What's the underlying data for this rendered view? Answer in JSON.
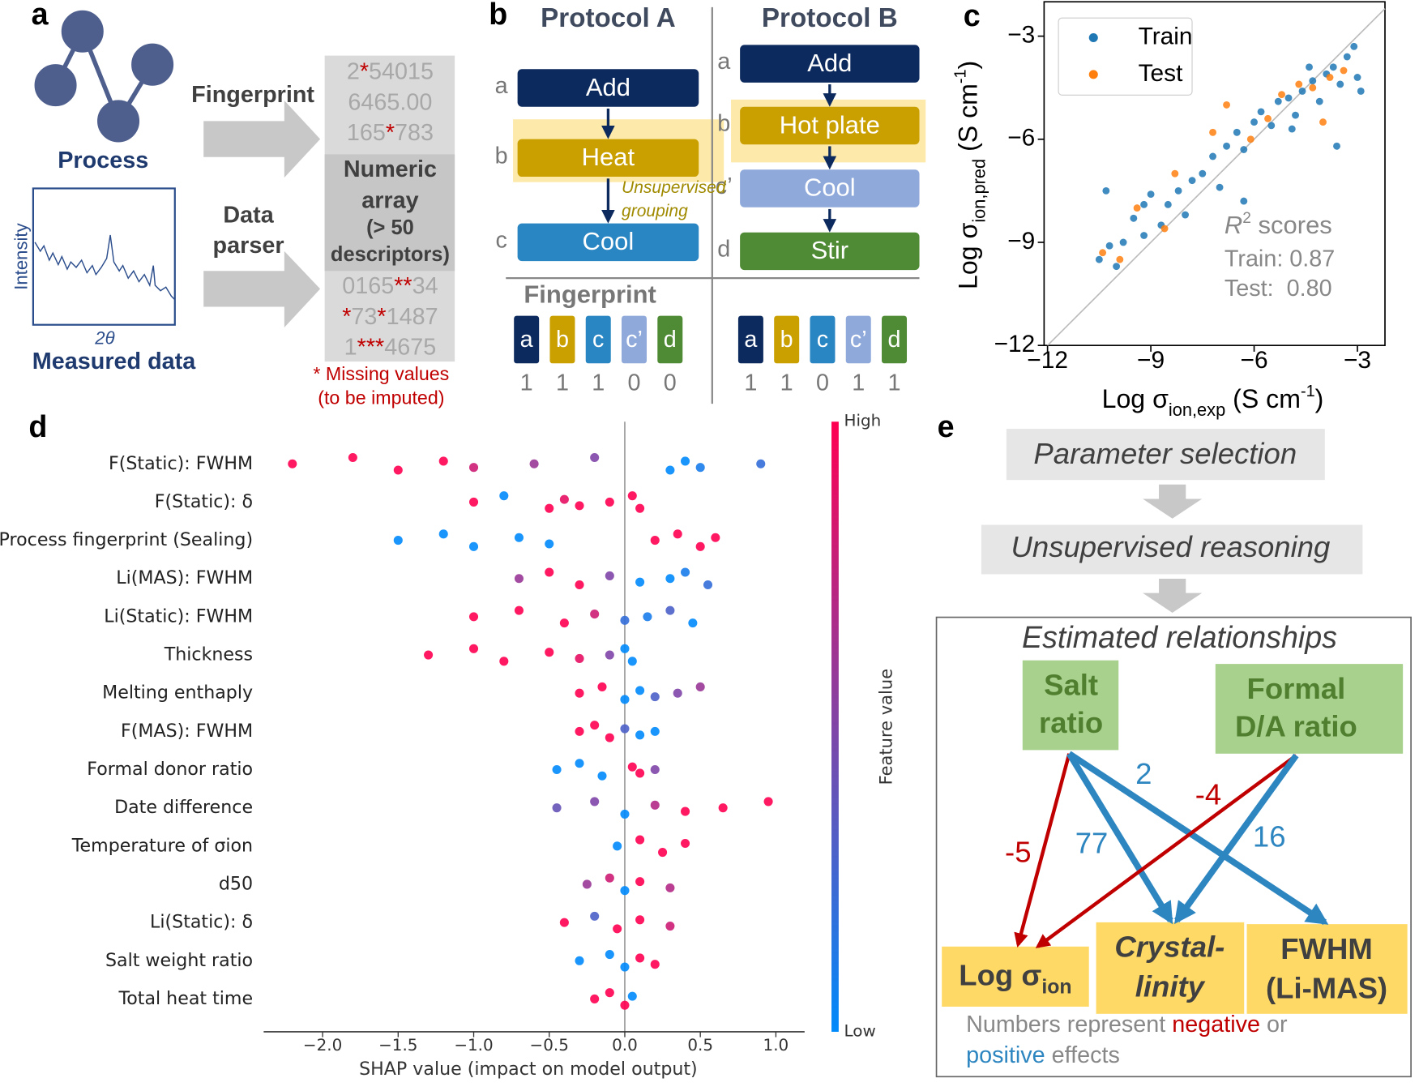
{
  "panel_a": {
    "letter": "a",
    "process": "Process",
    "fingerprint": "Fingerprint",
    "data_parser": [
      "Data",
      "parser"
    ],
    "intensity": "Intensity",
    "two_theta": "2θ",
    "measured_data": "Measured data",
    "array_lines": [
      "2*54015",
      "6465.00",
      "165*783",
      "0165**34",
      "*73*1487",
      "1***4675"
    ],
    "overlay": [
      "Numeric",
      "array",
      "(> 50",
      "descriptors)"
    ],
    "missing_note": [
      "* Missing values",
      "(to be imputed)"
    ]
  },
  "panel_b": {
    "letter": "b",
    "protocols": [
      {
        "title": "Protocol A",
        "steps": [
          {
            "tag": "a",
            "label": "Add"
          },
          {
            "tag": "b",
            "label": "Heat"
          },
          {
            "tag": "c",
            "label": "Cool"
          }
        ],
        "fingerprint": [
          1,
          1,
          1,
          0,
          0
        ]
      },
      {
        "title": "Protocol B",
        "steps": [
          {
            "tag": "a",
            "label": "Add"
          },
          {
            "tag": "b",
            "label": "Hot plate"
          },
          {
            "tag": "c’",
            "label": "Cool"
          },
          {
            "tag": "d",
            "label": "Stir"
          }
        ],
        "fingerprint": [
          1,
          1,
          0,
          1,
          1
        ]
      }
    ],
    "grouping": [
      "Unsupervised",
      "grouping"
    ],
    "fingerprint_title": "Fingerprint",
    "fingerprint_keys": [
      "a",
      "b",
      "c",
      "c’",
      "d"
    ],
    "key_colors": [
      "#0d2a5e",
      "#c9a000",
      "#2a86c2",
      "#8fa9db",
      "#4f8a34"
    ]
  },
  "chart_data": [
    {
      "panel_label": "c",
      "type": "scatter",
      "x_label": {
        "main": "Log σ",
        "sub": "ion,exp",
        "unit": " (S cm",
        "sup": "-1",
        "close": ")"
      },
      "y_label": {
        "main": "Log σ",
        "sub": "ion,pred",
        "unit": " (S cm",
        "sup": "-1",
        "close": ")"
      },
      "xlim": [
        -12.1,
        -2.2
      ],
      "ylim": [
        -12,
        -2
      ],
      "xticks": [
        {
          "value": -12,
          "label": "−12"
        },
        {
          "value": -9,
          "label": "−9"
        },
        {
          "value": -6,
          "label": "−6"
        },
        {
          "value": -3,
          "label": "−3"
        }
      ],
      "yticks": [
        {
          "value": -12,
          "label": "−12"
        },
        {
          "value": -9,
          "label": "−9"
        },
        {
          "value": -6,
          "label": "−6"
        },
        {
          "value": -3,
          "label": "−3"
        }
      ],
      "legend": "upper left",
      "identity_line": true,
      "series": [
        {
          "name": "Train",
          "color": "#1f77b4",
          "x": [
            -10.5,
            -10.2,
            -10,
            -9.8,
            -9.5,
            -9.2,
            -9,
            -8.7,
            -8.5,
            -8.2,
            -8,
            -7.8,
            -7.5,
            -7.2,
            -7,
            -6.8,
            -6.5,
            -6.3,
            -6,
            -5.8,
            -5.5,
            -5.3,
            -5,
            -4.8,
            -4.6,
            -4.3,
            -4.1,
            -3.9,
            -3.7,
            -3.5,
            -3.3,
            -3.1,
            -3,
            -3.6,
            -4.9,
            -10.3,
            -9.2,
            -6.3,
            -2.9,
            -4.4
          ],
          "values": [
            -9.5,
            -9.1,
            -9.7,
            -9,
            -8.3,
            -8.8,
            -7.6,
            -8.5,
            -7.9,
            -7.5,
            -8.2,
            -7.2,
            -7,
            -6.5,
            -7.4,
            -6.2,
            -5.8,
            -6.3,
            -5.5,
            -5.2,
            -5.6,
            -4.9,
            -4.8,
            -5.3,
            -4.6,
            -4.3,
            -4.9,
            -4.1,
            -3.9,
            -4.4,
            -3.6,
            -3.3,
            -4.2,
            -6.2,
            -5.7,
            -7.5,
            -7.9,
            -7.8,
            -4.6,
            -3.9
          ]
        },
        {
          "name": "Test",
          "color": "#ff7f0e",
          "x": [
            -10.4,
            -9.9,
            -9.4,
            -8.6,
            -8.3,
            -7.2,
            -6.8,
            -6.1,
            -5.6,
            -5.2,
            -4.7,
            -4.3,
            -4,
            -3.8,
            -3.4
          ],
          "values": [
            -9.3,
            -9.5,
            -8,
            -8.6,
            -7,
            -5.8,
            -5,
            -6,
            -5.4,
            -4.7,
            -4.4,
            -4.5,
            -5.5,
            -4.2,
            -4
          ]
        }
      ],
      "annotation": {
        "r": "R",
        "sup": "2",
        "rest": " scores",
        "lines": [
          "Train: 0.87",
          "Test:  0.80"
        ]
      }
    },
    {
      "panel_label": "d",
      "type": "beeswarm",
      "categories": [
        "F(Static): FWHM",
        "F(Static): δ",
        "Process fingerprint (Sealing)",
        "Li(MAS): FWHM",
        "Li(Static): FWHM",
        "Thickness",
        "Melting enthaply",
        "F(MAS): FWHM",
        "Formal donor ratio",
        "Date difference",
        "Temperature of σion",
        "d50",
        "Li(Static): δ",
        "Salt weight ratio",
        "Total heat time"
      ],
      "shap_values": [
        [
          -2.2,
          -1.8,
          -1.5,
          -1.2,
          -1,
          -0.6,
          -0.2,
          0.3,
          0.4,
          0.5,
          0.9
        ],
        [
          -1,
          -0.8,
          -0.5,
          -0.4,
          -0.3,
          -0.1,
          0.05,
          0.1
        ],
        [
          -1.5,
          -1.2,
          -1,
          -0.7,
          -0.5,
          0.2,
          0.35,
          0.5,
          0.6
        ],
        [
          -0.7,
          -0.5,
          -0.3,
          -0.1,
          0.1,
          0.3,
          0.4,
          0.55
        ],
        [
          -1,
          -0.7,
          -0.4,
          -0.2,
          0,
          0.15,
          0.3,
          0.45
        ],
        [
          -1.3,
          -1,
          -0.8,
          -0.5,
          -0.3,
          -0.1,
          0,
          0.05
        ],
        [
          -0.3,
          -0.15,
          0,
          0.1,
          0.2,
          0.35,
          0.5
        ],
        [
          -0.3,
          -0.2,
          -0.1,
          0,
          0.1,
          0.2
        ],
        [
          -0.45,
          -0.3,
          -0.15,
          0.05,
          0.1,
          0.2
        ],
        [
          -0.45,
          -0.2,
          0,
          0.2,
          0.4,
          0.65,
          0.95
        ],
        [
          -0.05,
          0.1,
          0.25,
          0.4
        ],
        [
          -0.25,
          -0.1,
          0,
          0.1,
          0.3
        ],
        [
          -0.4,
          -0.2,
          -0.05,
          0.1,
          0.3
        ],
        [
          -0.3,
          -0.1,
          0,
          0.1,
          0.2
        ],
        [
          -0.2,
          -0.1,
          0,
          0.05
        ]
      ],
      "feature_values": [
        [
          1,
          1,
          1,
          1,
          0.8,
          0.6,
          0.5,
          0,
          0,
          0.1,
          0.2
        ],
        [
          1,
          0,
          1,
          0.9,
          1,
          1,
          1,
          1
        ],
        [
          0,
          0,
          0,
          0,
          0,
          1,
          1,
          1,
          1
        ],
        [
          0.6,
          1,
          1,
          0.5,
          0,
          0,
          0.1,
          0.2
        ],
        [
          1,
          1,
          1,
          0.8,
          0.2,
          0.1,
          0.3,
          0
        ],
        [
          1,
          1,
          1,
          1,
          0.9,
          0.5,
          0,
          0
        ],
        [
          1,
          1,
          0,
          0,
          0.3,
          0.5,
          0.6
        ],
        [
          1,
          1,
          1,
          0.3,
          0,
          0
        ],
        [
          0,
          0,
          0,
          1,
          1,
          0.5
        ],
        [
          0.4,
          0.5,
          0,
          0.7,
          1,
          1,
          1
        ],
        [
          0,
          1,
          1,
          1
        ],
        [
          0.6,
          0.8,
          0,
          1,
          0.7
        ],
        [
          1,
          0.3,
          1,
          1,
          0.8
        ],
        [
          0,
          0,
          0,
          1,
          1
        ],
        [
          1,
          1,
          1,
          0
        ]
      ],
      "xlim": [
        -2.39,
        1.19
      ],
      "xticks": [
        {
          "value": -2,
          "label": "−2.0"
        },
        {
          "value": -1.5,
          "label": "−1.5"
        },
        {
          "value": -1,
          "label": "−1.0"
        },
        {
          "value": -0.5,
          "label": "−0.5"
        },
        {
          "value": 0,
          "label": "0.0"
        },
        0.5,
        {
          "value": 1,
          "label": "1.0"
        }
      ],
      "x_label": "SHAP value (impact on model output)",
      "colorbar": {
        "high": "High",
        "low": "Low",
        "label": "Feature value",
        "colors": [
          "#008afb",
          "#ff0052"
        ]
      }
    }
  ],
  "panel_e": {
    "letter": "e",
    "steps": [
      "Parameter selection",
      "Unsupervised reasoning"
    ],
    "frame_title": "Estimated relationships",
    "inputs": [
      [
        "Salt",
        "ratio"
      ],
      [
        "Formal",
        "D/A ratio"
      ]
    ],
    "log_sigma": {
      "main": "Log σ",
      "sub": "ion"
    },
    "outputs": [
      [
        "Crystal-",
        "linity"
      ],
      [
        "FWHM",
        "(Li-MAS)"
      ]
    ],
    "edges": [
      {
        "from": 0,
        "to": 0,
        "value": -5
      },
      {
        "from": 0,
        "to": 1,
        "value": 77
      },
      {
        "from": 0,
        "to": 2,
        "value": 2
      },
      {
        "from": 1,
        "to": 0,
        "value": -4
      },
      {
        "from": 1,
        "to": 1,
        "value": 16
      }
    ],
    "negative_color": "#c00000",
    "positive_color": "#2e86c1",
    "note": [
      [
        "Numbers represent ",
        "negative",
        " or"
      ],
      [
        "positive",
        " effects"
      ]
    ]
  }
}
